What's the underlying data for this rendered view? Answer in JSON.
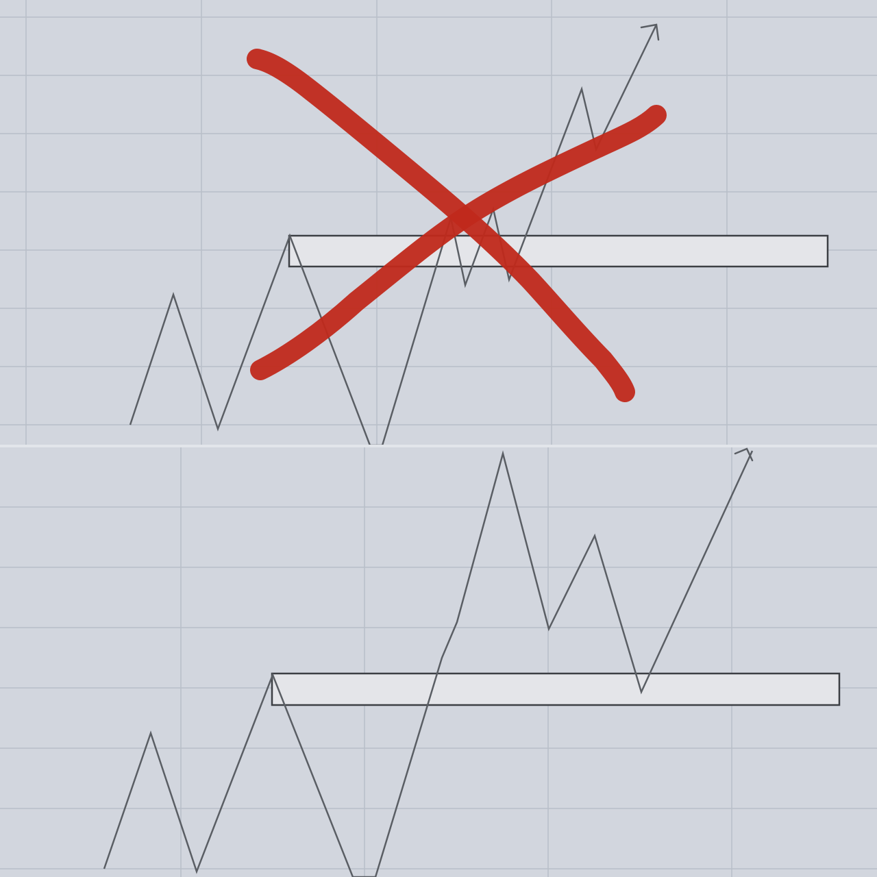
{
  "colors": {
    "background": "#d2d6de",
    "grid": "#b8bec8",
    "price_line": "#5a5e64",
    "zone_fill": "#e4e5e9",
    "zone_border": "#3c3f44",
    "cross_mark": "#c0291b"
  },
  "panels": [
    {
      "id": "top",
      "description_icon": "red-x-mark",
      "has_cross_mark": true
    },
    {
      "id": "bottom",
      "has_cross_mark": false
    }
  ]
}
